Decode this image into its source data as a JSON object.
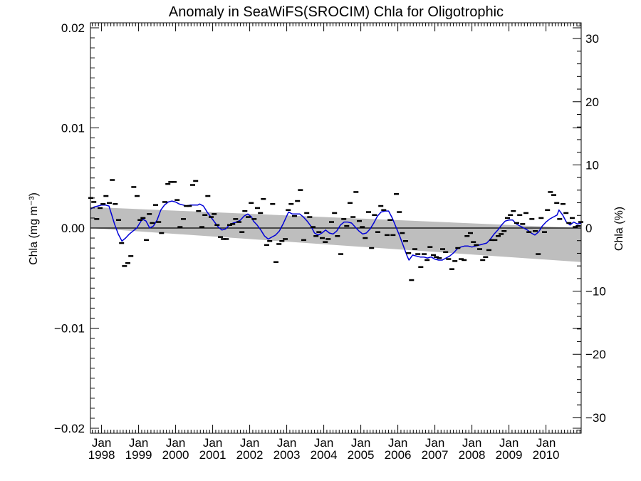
{
  "chart_data": {
    "type": "line",
    "title": "Anomaly in SeaWiFS(SROCIM) Chla for Oligotrophic",
    "ylabel_left": "Chla (mg m⁻³)",
    "ylabel_right": "Chla (%)",
    "xlabel": "",
    "ylim_left": [
      -0.0205,
      0.0205
    ],
    "ylim_right": [
      -32.5,
      32.5
    ],
    "xlim": [
      1997.7,
      2010.95
    ],
    "grid": false,
    "left_ticks": [
      {
        "v": 0.02,
        "label": "0.02"
      },
      {
        "v": 0.01,
        "label": "0.01"
      },
      {
        "v": 0.0,
        "label": "0.00"
      },
      {
        "v": -0.01,
        "label": "−0.01"
      },
      {
        "v": -0.02,
        "label": "−0.02"
      }
    ],
    "right_ticks": [
      {
        "v": 30,
        "label": "30"
      },
      {
        "v": 20,
        "label": "20"
      },
      {
        "v": 10,
        "label": "10"
      },
      {
        "v": 0,
        "label": "0"
      },
      {
        "v": -10,
        "label": "−10"
      },
      {
        "v": -20,
        "label": "−20"
      },
      {
        "v": -30,
        "label": "−30"
      }
    ],
    "x_ticks": [
      {
        "v": 1998,
        "month": "Jan",
        "year": "1998"
      },
      {
        "v": 1999,
        "month": "Jan",
        "year": "1999"
      },
      {
        "v": 2000,
        "month": "Jan",
        "year": "2000"
      },
      {
        "v": 2001,
        "month": "Jan",
        "year": "2001"
      },
      {
        "v": 2002,
        "month": "Jan",
        "year": "2002"
      },
      {
        "v": 2003,
        "month": "Jan",
        "year": "2003"
      },
      {
        "v": 2004,
        "month": "Jan",
        "year": "2004"
      },
      {
        "v": 2005,
        "month": "Jan",
        "year": "2005"
      },
      {
        "v": 2006,
        "month": "Jan",
        "year": "2006"
      },
      {
        "v": 2007,
        "month": "Jan",
        "year": "2007"
      },
      {
        "v": 2008,
        "month": "Jan",
        "year": "2008"
      },
      {
        "v": 2009,
        "month": "Jan",
        "year": "2009"
      },
      {
        "v": 2010,
        "month": "Jan",
        "year": "2010"
      }
    ],
    "trend_band": {
      "x": [
        1997.7,
        2010.95
      ],
      "upper": [
        0.0021,
        0.0
      ],
      "lower": [
        0.0,
        -0.0034
      ],
      "color": "#bebebe"
    },
    "zero_line": 0.0,
    "monthly_anomalies": {
      "color": "#000000",
      "points": [
        [
          1997.71,
          0.003
        ],
        [
          1997.79,
          0.0026
        ],
        [
          1997.87,
          0.0009
        ],
        [
          1997.96,
          0.002
        ],
        [
          1998.04,
          0.0024
        ],
        [
          1998.12,
          0.0032
        ],
        [
          1998.21,
          0.0025
        ],
        [
          1998.29,
          0.0048
        ],
        [
          1998.37,
          0.0024
        ],
        [
          1998.46,
          0.0008
        ],
        [
          1998.54,
          -0.0015
        ],
        [
          1998.62,
          -0.0038
        ],
        [
          1998.71,
          -0.0035
        ],
        [
          1998.79,
          -0.0028
        ],
        [
          1998.87,
          0.0041
        ],
        [
          1998.96,
          0.0032
        ],
        [
          1999.04,
          0.0008
        ],
        [
          1999.12,
          0.001
        ],
        [
          1999.21,
          -0.0012
        ],
        [
          1999.29,
          0.0014
        ],
        [
          1999.37,
          0.0005
        ],
        [
          1999.46,
          0.0023
        ],
        [
          1999.54,
          0.0006
        ],
        [
          1999.62,
          -0.0005
        ],
        [
          1999.71,
          0.0026
        ],
        [
          1999.79,
          0.0044
        ],
        [
          1999.87,
          0.0046
        ],
        [
          1999.96,
          0.0046
        ],
        [
          2000.04,
          0.0028
        ],
        [
          2000.12,
          0.0001
        ],
        [
          2000.21,
          0.0009
        ],
        [
          2000.29,
          0.0022
        ],
        [
          2000.37,
          0.0022
        ],
        [
          2000.46,
          0.0043
        ],
        [
          2000.54,
          0.0047
        ],
        [
          2000.62,
          0.0017
        ],
        [
          2000.71,
          0.0001
        ],
        [
          2000.79,
          0.0013
        ],
        [
          2000.87,
          0.0032
        ],
        [
          2000.96,
          0.0011
        ],
        [
          2001.04,
          0.0014
        ],
        [
          2001.12,
          0.0003
        ],
        [
          2001.21,
          -0.0009
        ],
        [
          2001.29,
          -0.0011
        ],
        [
          2001.37,
          -0.0011
        ],
        [
          2001.46,
          0.0003
        ],
        [
          2001.54,
          0.0004
        ],
        [
          2001.62,
          0.0009
        ],
        [
          2001.71,
          0.0006
        ],
        [
          2001.79,
          -0.0004
        ],
        [
          2001.87,
          0.0017
        ],
        [
          2001.96,
          0.0011
        ],
        [
          2002.04,
          0.0025
        ],
        [
          2002.12,
          0.0009
        ],
        [
          2002.21,
          0.002
        ],
        [
          2002.29,
          0.0015
        ],
        [
          2002.37,
          0.0029
        ],
        [
          2002.46,
          -0.0017
        ],
        [
          2002.54,
          -0.0013
        ],
        [
          2002.62,
          0.0024
        ],
        [
          2002.71,
          -0.0034
        ],
        [
          2002.79,
          -0.0016
        ],
        [
          2002.87,
          -0.0013
        ],
        [
          2002.96,
          -0.0011
        ],
        [
          2003.04,
          0.0018
        ],
        [
          2003.12,
          0.0024
        ],
        [
          2003.21,
          0.0012
        ],
        [
          2003.29,
          0.0027
        ],
        [
          2003.37,
          0.0038
        ],
        [
          2003.46,
          -0.0012
        ],
        [
          2003.54,
          0.0015
        ],
        [
          2003.62,
          0.0011
        ],
        [
          2003.71,
          0.0001
        ],
        [
          2003.79,
          -0.0008
        ],
        [
          2003.87,
          -0.0004
        ],
        [
          2003.96,
          -0.001
        ],
        [
          2004.04,
          -0.0014
        ],
        [
          2004.12,
          -0.0011
        ],
        [
          2004.21,
          0.0006
        ],
        [
          2004.29,
          0.0015
        ],
        [
          2004.37,
          -0.0008
        ],
        [
          2004.46,
          -0.0026
        ],
        [
          2004.54,
          0.0009
        ],
        [
          2004.62,
          0.0002
        ],
        [
          2004.71,
          0.0025
        ],
        [
          2004.79,
          0.0011
        ],
        [
          2004.87,
          0.0036
        ],
        [
          2004.96,
          0.0007
        ],
        [
          2005.04,
          0.0001
        ],
        [
          2005.12,
          -0.001
        ],
        [
          2005.21,
          0.0016
        ],
        [
          2005.29,
          -0.002
        ],
        [
          2005.37,
          0.0013
        ],
        [
          2005.46,
          -0.0004
        ],
        [
          2005.54,
          0.0022
        ],
        [
          2005.62,
          0.0018
        ],
        [
          2005.71,
          -0.0007
        ],
        [
          2005.79,
          0.0008
        ],
        [
          2005.87,
          -0.0007
        ],
        [
          2005.96,
          0.0034
        ],
        [
          2006.04,
          0.0016
        ],
        [
          2006.12,
          -0.0005
        ],
        [
          2006.21,
          -0.0013
        ],
        [
          2006.29,
          -0.0025
        ],
        [
          2006.37,
          -0.0052
        ],
        [
          2006.46,
          -0.0021
        ],
        [
          2006.54,
          -0.0026
        ],
        [
          2006.62,
          -0.0039
        ],
        [
          2006.71,
          -0.0026
        ],
        [
          2006.79,
          -0.0032
        ],
        [
          2006.87,
          -0.0019
        ],
        [
          2006.96,
          -0.0027
        ],
        [
          2007.04,
          -0.0029
        ],
        [
          2007.12,
          -0.003
        ],
        [
          2007.21,
          -0.0021
        ],
        [
          2007.29,
          -0.0024
        ],
        [
          2007.37,
          -0.0031
        ],
        [
          2007.46,
          -0.0041
        ],
        [
          2007.54,
          -0.0033
        ],
        [
          2007.62,
          -0.002
        ],
        [
          2007.71,
          -0.0031
        ],
        [
          2007.79,
          -0.0032
        ],
        [
          2007.87,
          -0.0008
        ],
        [
          2007.96,
          -0.0005
        ],
        [
          2008.04,
          -0.0014
        ],
        [
          2008.12,
          -0.0017
        ],
        [
          2008.21,
          -0.0021
        ],
        [
          2008.29,
          -0.0032
        ],
        [
          2008.37,
          -0.0029
        ],
        [
          2008.46,
          -0.0022
        ],
        [
          2008.54,
          -0.0012
        ],
        [
          2008.62,
          -0.0012
        ],
        [
          2008.71,
          -0.0008
        ],
        [
          2008.79,
          -0.0006
        ],
        [
          2008.87,
          -0.0003
        ],
        [
          2008.96,
          0.001
        ],
        [
          2009.04,
          0.0013
        ],
        [
          2009.12,
          0.0017
        ],
        [
          2009.21,
          0.0005
        ],
        [
          2009.29,
          0.0013
        ],
        [
          2009.37,
          0.0004
        ],
        [
          2009.46,
          0.0015
        ],
        [
          2009.54,
          -0.0004
        ],
        [
          2009.62,
          0.0009
        ],
        [
          2009.71,
          -0.0003
        ],
        [
          2009.79,
          -0.0026
        ],
        [
          2009.87,
          0.001
        ],
        [
          2009.96,
          -0.0004
        ],
        [
          2010.04,
          0.0018
        ],
        [
          2010.12,
          0.0036
        ],
        [
          2010.21,
          0.0033
        ],
        [
          2010.29,
          0.0025
        ],
        [
          2010.37,
          0.0009
        ],
        [
          2010.46,
          0.0024
        ],
        [
          2010.54,
          0.0015
        ],
        [
          2010.62,
          0.0005
        ],
        [
          2010.71,
          0.001
        ],
        [
          2010.79,
          0.0001
        ],
        [
          2010.87,
          0.0002
        ],
        [
          2010.94,
          0.0006
        ]
      ]
    },
    "running_mean": {
      "color": "#0000d8",
      "points": [
        [
          1997.7,
          0.0019
        ],
        [
          1997.8,
          0.0021
        ],
        [
          1997.9,
          0.0022
        ],
        [
          1998.0,
          0.0023
        ],
        [
          1998.1,
          0.0023
        ],
        [
          1998.2,
          0.0022
        ],
        [
          1998.25,
          0.0016
        ],
        [
          1998.35,
          0.0004
        ],
        [
          1998.45,
          -0.0006
        ],
        [
          1998.55,
          -0.0013
        ],
        [
          1998.65,
          -0.001
        ],
        [
          1998.75,
          -0.0006
        ],
        [
          1998.85,
          -0.0003
        ],
        [
          1998.95,
          0.0
        ],
        [
          1999.05,
          0.0006
        ],
        [
          1999.1,
          0.0009
        ],
        [
          1999.2,
          0.0007
        ],
        [
          1999.3,
          0.0
        ],
        [
          1999.4,
          0.0002
        ],
        [
          1999.5,
          0.0008
        ],
        [
          1999.6,
          0.0018
        ],
        [
          1999.7,
          0.0023
        ],
        [
          1999.8,
          0.0026
        ],
        [
          1999.9,
          0.0027
        ],
        [
          2000.0,
          0.0026
        ],
        [
          2000.1,
          0.0024
        ],
        [
          2000.2,
          0.0023
        ],
        [
          2000.3,
          0.0022
        ],
        [
          2000.4,
          0.0023
        ],
        [
          2000.5,
          0.0023
        ],
        [
          2000.6,
          0.0023
        ],
        [
          2000.65,
          0.0024
        ],
        [
          2000.75,
          0.0022
        ],
        [
          2000.85,
          0.0016
        ],
        [
          2000.95,
          0.0011
        ],
        [
          2001.05,
          0.0006
        ],
        [
          2001.15,
          0.0001
        ],
        [
          2001.25,
          -0.0002
        ],
        [
          2001.35,
          -0.0001
        ],
        [
          2001.45,
          0.0003
        ],
        [
          2001.55,
          0.0005
        ],
        [
          2001.65,
          0.0006
        ],
        [
          2001.75,
          0.0008
        ],
        [
          2001.85,
          0.0012
        ],
        [
          2001.95,
          0.0014
        ],
        [
          2002.05,
          0.0011
        ],
        [
          2002.1,
          0.0007
        ],
        [
          2002.2,
          0.0003
        ],
        [
          2002.3,
          -0.0002
        ],
        [
          2002.4,
          -0.0008
        ],
        [
          2002.5,
          -0.0011
        ],
        [
          2002.6,
          -0.0009
        ],
        [
          2002.7,
          -0.0007
        ],
        [
          2002.8,
          -0.0003
        ],
        [
          2002.9,
          0.0004
        ],
        [
          2003.0,
          0.0012
        ],
        [
          2003.05,
          0.0016
        ],
        [
          2003.15,
          0.0014
        ],
        [
          2003.25,
          0.0014
        ],
        [
          2003.35,
          0.0014
        ],
        [
          2003.45,
          0.0011
        ],
        [
          2003.55,
          0.0007
        ],
        [
          2003.65,
          0.0002
        ],
        [
          2003.75,
          -0.0005
        ],
        [
          2003.85,
          -0.0007
        ],
        [
          2003.95,
          -0.0005
        ],
        [
          2004.05,
          -0.0002
        ],
        [
          2004.15,
          -0.0005
        ],
        [
          2004.25,
          -0.0006
        ],
        [
          2004.35,
          -0.0003
        ],
        [
          2004.45,
          0.0003
        ],
        [
          2004.55,
          0.0006
        ],
        [
          2004.65,
          0.0006
        ],
        [
          2004.75,
          0.0005
        ],
        [
          2004.85,
          0.0001
        ],
        [
          2004.95,
          -0.0003
        ],
        [
          2005.05,
          -0.0006
        ],
        [
          2005.15,
          -0.0005
        ],
        [
          2005.25,
          -0.0001
        ],
        [
          2005.35,
          0.0005
        ],
        [
          2005.45,
          0.0012
        ],
        [
          2005.55,
          0.0016
        ],
        [
          2005.65,
          0.0017
        ],
        [
          2005.75,
          0.0017
        ],
        [
          2005.85,
          0.001
        ],
        [
          2005.95,
          0.0001
        ],
        [
          2006.05,
          -0.0008
        ],
        [
          2006.15,
          -0.0018
        ],
        [
          2006.25,
          -0.0028
        ],
        [
          2006.3,
          -0.0032
        ],
        [
          2006.4,
          -0.0027
        ],
        [
          2006.5,
          -0.0028
        ],
        [
          2006.6,
          -0.0029
        ],
        [
          2006.7,
          -0.0029
        ],
        [
          2006.8,
          -0.003
        ],
        [
          2006.9,
          -0.0029
        ],
        [
          2007.0,
          -0.0031
        ],
        [
          2007.1,
          -0.0032
        ],
        [
          2007.2,
          -0.0032
        ],
        [
          2007.3,
          -0.003
        ],
        [
          2007.4,
          -0.0028
        ],
        [
          2007.5,
          -0.0025
        ],
        [
          2007.6,
          -0.0021
        ],
        [
          2007.7,
          -0.0019
        ],
        [
          2007.8,
          -0.0018
        ],
        [
          2007.9,
          -0.0018
        ],
        [
          2008.0,
          -0.0019
        ],
        [
          2008.1,
          -0.0018
        ],
        [
          2008.2,
          -0.0017
        ],
        [
          2008.3,
          -0.0016
        ],
        [
          2008.4,
          -0.0015
        ],
        [
          2008.5,
          -0.0011
        ],
        [
          2008.6,
          -0.0006
        ],
        [
          2008.7,
          -0.0002
        ],
        [
          2008.8,
          0.0003
        ],
        [
          2008.9,
          0.0007
        ],
        [
          2009.0,
          0.0008
        ],
        [
          2009.1,
          0.0008
        ],
        [
          2009.2,
          0.0004
        ],
        [
          2009.3,
          0.0002
        ],
        [
          2009.4,
          0.0
        ],
        [
          2009.5,
          -0.0002
        ],
        [
          2009.6,
          -0.0005
        ],
        [
          2009.7,
          -0.0007
        ],
        [
          2009.8,
          -0.0004
        ],
        [
          2009.9,
          0.0002
        ],
        [
          2010.0,
          0.0006
        ],
        [
          2010.1,
          0.0009
        ],
        [
          2010.2,
          0.0011
        ],
        [
          2010.3,
          0.0013
        ],
        [
          2010.35,
          0.0018
        ],
        [
          2010.45,
          0.0013
        ],
        [
          2010.55,
          0.0006
        ],
        [
          2010.65,
          0.0003
        ],
        [
          2010.75,
          0.0006
        ],
        [
          2010.85,
          0.0004
        ],
        [
          2010.95,
          0.0005
        ]
      ]
    }
  }
}
